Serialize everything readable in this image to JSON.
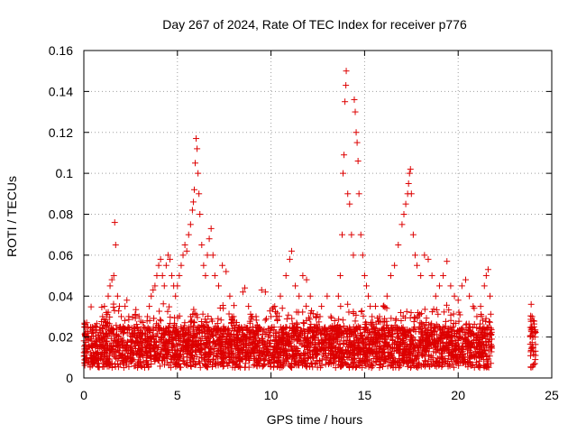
{
  "chart_data": {
    "type": "scatter",
    "title": "Day 267 of 2024, Rate Of TEC Index for receiver p776",
    "xlabel": "GPS time / hours",
    "ylabel": "ROTI / TECUs",
    "xlim": [
      0,
      25
    ],
    "ylim": [
      0,
      0.16
    ],
    "x_ticks": [
      0,
      5,
      10,
      15,
      20,
      25
    ],
    "x_tick_labels": [
      "0",
      "5",
      "10",
      "15",
      "20",
      "25"
    ],
    "y_ticks": [
      0,
      0.02,
      0.04,
      0.06,
      0.08,
      0.1,
      0.12,
      0.14,
      0.16
    ],
    "y_tick_labels": [
      "0",
      "0.02",
      "0.04",
      "0.06",
      "0.08",
      "0.1",
      "0.12",
      "0.14",
      "0.16"
    ],
    "grid": true,
    "marker": "+",
    "color": "#dd0000",
    "series": [
      {
        "name": "ROTI",
        "points": [
          [
            0.05,
            0.025
          ],
          [
            0.15,
            0.027
          ],
          [
            0.25,
            0.02
          ],
          [
            0.3,
            0.015
          ],
          [
            0.5,
            0.012
          ],
          [
            0.7,
            0.018
          ],
          [
            0.9,
            0.022
          ],
          [
            1.0,
            0.03
          ],
          [
            1.1,
            0.035
          ],
          [
            1.2,
            0.032
          ],
          [
            1.3,
            0.04
          ],
          [
            1.4,
            0.045
          ],
          [
            1.5,
            0.048
          ],
          [
            1.6,
            0.05
          ],
          [
            1.65,
            0.076
          ],
          [
            1.7,
            0.065
          ],
          [
            1.8,
            0.04
          ],
          [
            1.9,
            0.035
          ],
          [
            2.0,
            0.03
          ],
          [
            2.1,
            0.025
          ],
          [
            2.2,
            0.035
          ],
          [
            2.3,
            0.038
          ],
          [
            2.4,
            0.03
          ],
          [
            2.6,
            0.02
          ],
          [
            2.8,
            0.018
          ],
          [
            3.0,
            0.02
          ],
          [
            3.2,
            0.025
          ],
          [
            3.4,
            0.03
          ],
          [
            3.5,
            0.035
          ],
          [
            3.6,
            0.04
          ],
          [
            3.7,
            0.043
          ],
          [
            3.8,
            0.045
          ],
          [
            3.9,
            0.05
          ],
          [
            4.0,
            0.055
          ],
          [
            4.1,
            0.058
          ],
          [
            4.2,
            0.05
          ],
          [
            4.3,
            0.045
          ],
          [
            4.4,
            0.055
          ],
          [
            4.5,
            0.06
          ],
          [
            4.6,
            0.058
          ],
          [
            4.7,
            0.05
          ],
          [
            4.8,
            0.045
          ],
          [
            4.9,
            0.04
          ],
          [
            5.0,
            0.045
          ],
          [
            5.1,
            0.05
          ],
          [
            5.2,
            0.055
          ],
          [
            5.3,
            0.06
          ],
          [
            5.4,
            0.065
          ],
          [
            5.5,
            0.062
          ],
          [
            5.6,
            0.07
          ],
          [
            5.7,
            0.075
          ],
          [
            5.8,
            0.082
          ],
          [
            5.85,
            0.086
          ],
          [
            5.9,
            0.092
          ],
          [
            5.95,
            0.105
          ],
          [
            6.0,
            0.117
          ],
          [
            6.05,
            0.112
          ],
          [
            6.1,
            0.1
          ],
          [
            6.15,
            0.09
          ],
          [
            6.2,
            0.08
          ],
          [
            6.3,
            0.065
          ],
          [
            6.4,
            0.055
          ],
          [
            6.5,
            0.05
          ],
          [
            6.6,
            0.06
          ],
          [
            6.7,
            0.068
          ],
          [
            6.8,
            0.073
          ],
          [
            6.9,
            0.06
          ],
          [
            7.0,
            0.05
          ],
          [
            7.2,
            0.045
          ],
          [
            7.4,
            0.055
          ],
          [
            7.6,
            0.052
          ],
          [
            7.8,
            0.04
          ],
          [
            8.0,
            0.03
          ],
          [
            8.3,
            0.025
          ],
          [
            8.5,
            0.042
          ],
          [
            8.6,
            0.044
          ],
          [
            8.8,
            0.035
          ],
          [
            9.0,
            0.03
          ],
          [
            9.2,
            0.03
          ],
          [
            9.5,
            0.043
          ],
          [
            9.7,
            0.042
          ],
          [
            10.0,
            0.03
          ],
          [
            10.2,
            0.035
          ],
          [
            10.5,
            0.04
          ],
          [
            10.8,
            0.05
          ],
          [
            11.0,
            0.058
          ],
          [
            11.1,
            0.062
          ],
          [
            11.3,
            0.045
          ],
          [
            11.5,
            0.04
          ],
          [
            11.7,
            0.05
          ],
          [
            11.9,
            0.048
          ],
          [
            12.1,
            0.04
          ],
          [
            12.4,
            0.03
          ],
          [
            12.7,
            0.035
          ],
          [
            13.0,
            0.04
          ],
          [
            13.2,
            0.03
          ],
          [
            13.4,
            0.028
          ],
          [
            13.6,
            0.04
          ],
          [
            13.7,
            0.05
          ],
          [
            13.8,
            0.07
          ],
          [
            13.85,
            0.1
          ],
          [
            13.9,
            0.109
          ],
          [
            13.95,
            0.135
          ],
          [
            14.0,
            0.143
          ],
          [
            14.02,
            0.15
          ],
          [
            14.1,
            0.09
          ],
          [
            14.2,
            0.085
          ],
          [
            14.3,
            0.07
          ],
          [
            14.4,
            0.06
          ],
          [
            14.45,
            0.136
          ],
          [
            14.5,
            0.13
          ],
          [
            14.55,
            0.12
          ],
          [
            14.6,
            0.115
          ],
          [
            14.65,
            0.106
          ],
          [
            14.7,
            0.09
          ],
          [
            14.8,
            0.07
          ],
          [
            14.9,
            0.06
          ],
          [
            15.0,
            0.05
          ],
          [
            15.1,
            0.045
          ],
          [
            15.2,
            0.04
          ],
          [
            15.3,
            0.035
          ],
          [
            15.4,
            0.03
          ],
          [
            15.5,
            0.025
          ],
          [
            15.8,
            0.03
          ],
          [
            16.0,
            0.035
          ],
          [
            16.2,
            0.04
          ],
          [
            16.4,
            0.05
          ],
          [
            16.6,
            0.055
          ],
          [
            16.8,
            0.065
          ],
          [
            17.0,
            0.075
          ],
          [
            17.1,
            0.08
          ],
          [
            17.2,
            0.085
          ],
          [
            17.3,
            0.09
          ],
          [
            17.35,
            0.095
          ],
          [
            17.4,
            0.1
          ],
          [
            17.45,
            0.102
          ],
          [
            17.5,
            0.09
          ],
          [
            17.6,
            0.07
          ],
          [
            17.7,
            0.06
          ],
          [
            17.8,
            0.055
          ],
          [
            18.0,
            0.05
          ],
          [
            18.2,
            0.06
          ],
          [
            18.4,
            0.058
          ],
          [
            18.6,
            0.05
          ],
          [
            18.8,
            0.04
          ],
          [
            19.0,
            0.045
          ],
          [
            19.2,
            0.05
          ],
          [
            19.4,
            0.057
          ],
          [
            19.6,
            0.045
          ],
          [
            19.8,
            0.04
          ],
          [
            20.0,
            0.038
          ],
          [
            20.2,
            0.045
          ],
          [
            20.4,
            0.048
          ],
          [
            20.6,
            0.04
          ],
          [
            20.8,
            0.035
          ],
          [
            21.0,
            0.03
          ],
          [
            21.2,
            0.035
          ],
          [
            21.4,
            0.045
          ],
          [
            21.5,
            0.05
          ],
          [
            21.6,
            0.053
          ],
          [
            21.7,
            0.04
          ],
          [
            23.9,
            0.036
          ],
          [
            23.95,
            0.03
          ],
          [
            24.0,
            0.028
          ],
          [
            24.05,
            0.025
          ],
          [
            24.1,
            0.02
          ]
        ]
      }
    ]
  }
}
